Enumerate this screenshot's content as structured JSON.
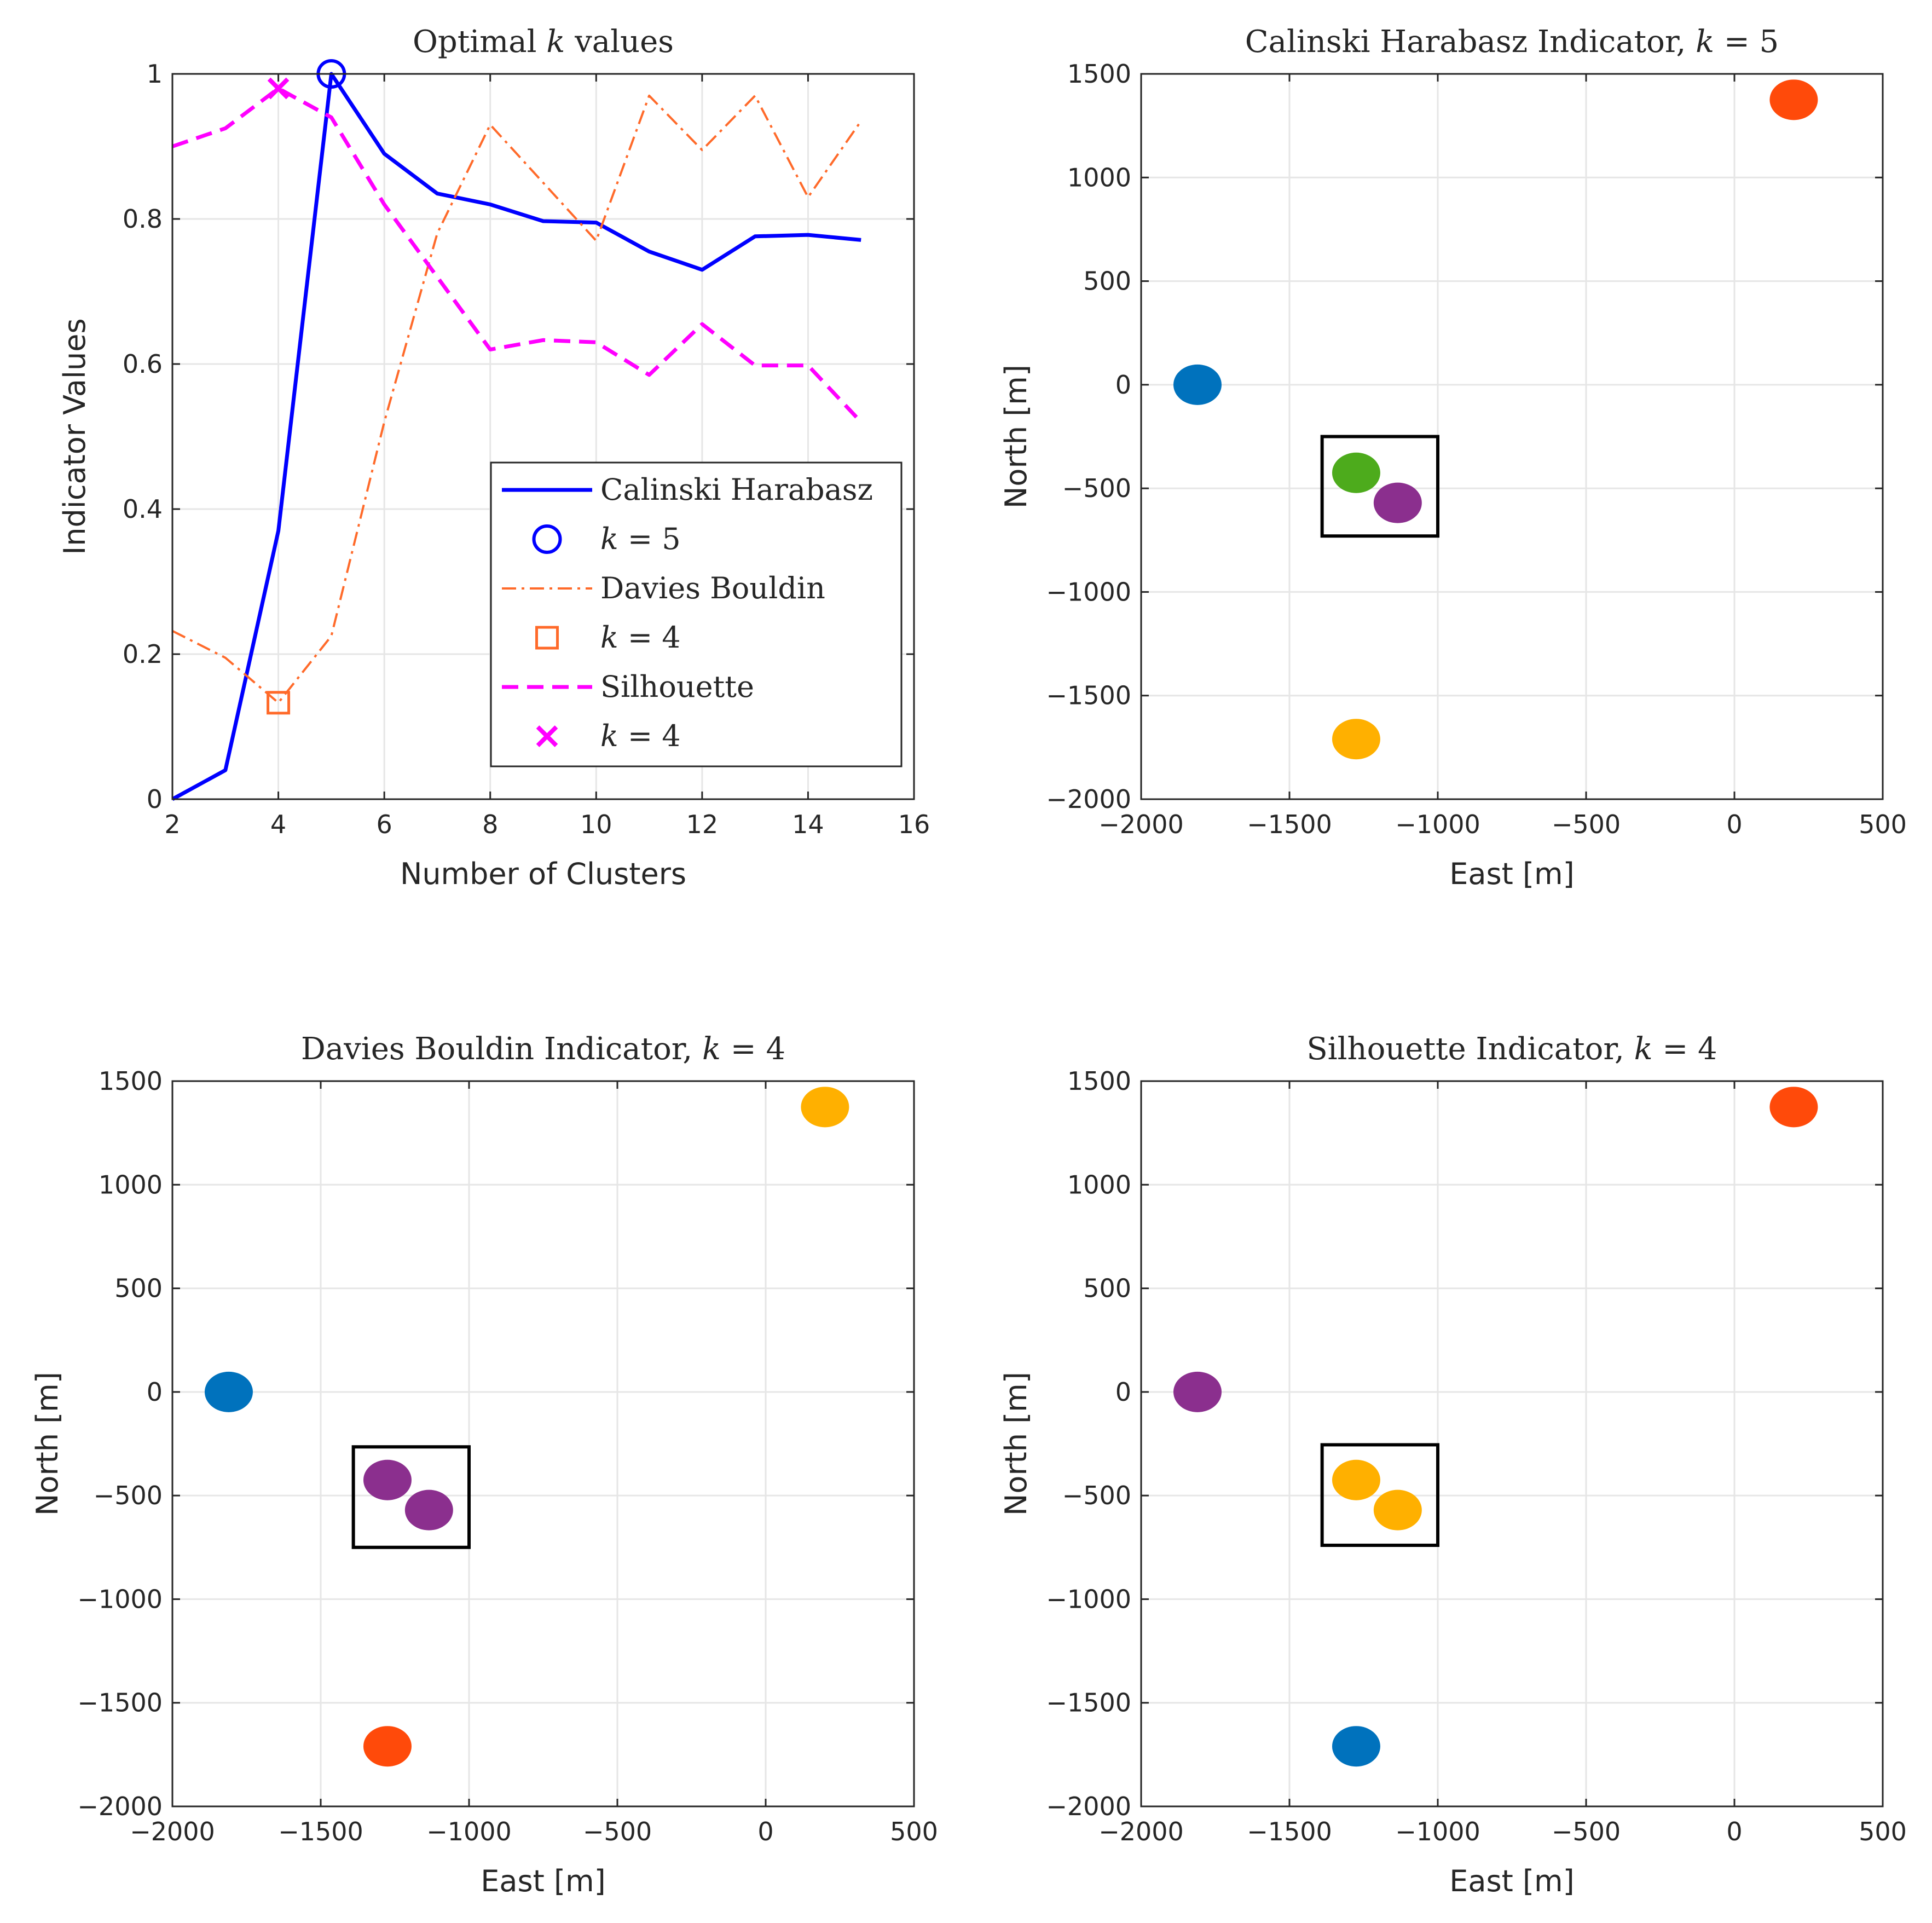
{
  "chart_data": [
    {
      "type": "line",
      "title": "Optimal k values",
      "title_parts": [
        "Optimal ",
        "k",
        " values"
      ],
      "xlabel": "Number of Clusters",
      "ylabel": "Indicator Values",
      "xlim": [
        2,
        16
      ],
      "ylim": [
        0,
        1
      ],
      "xticks": [
        "2",
        "4",
        "6",
        "8",
        "10",
        "12",
        "14",
        "16"
      ],
      "yticks": [
        "0",
        "0.2",
        "0.4",
        "0.6",
        "0.8",
        "1"
      ],
      "grid": true,
      "legend_position": "lower-right",
      "x": [
        2,
        3,
        4,
        5,
        6,
        7,
        8,
        9,
        10,
        11,
        12,
        13,
        14,
        15
      ],
      "series": [
        {
          "name": "Calinski Harabasz",
          "color": "#0000ff",
          "style": "solid",
          "values": [
            0.0,
            0.04,
            0.37,
            1.0,
            0.89,
            0.835,
            0.82,
            0.797,
            0.795,
            0.755,
            0.73,
            0.776,
            0.778,
            0.771
          ]
        },
        {
          "name": "Davies Bouldin",
          "color": "#ff6a2a",
          "style": "dashdot",
          "values": [
            0.232,
            0.195,
            0.133,
            0.225,
            0.52,
            0.78,
            0.93,
            0.85,
            0.77,
            0.97,
            0.895,
            0.97,
            0.83,
            0.935
          ]
        },
        {
          "name": "Silhouette",
          "color": "#ff00ff",
          "style": "dashed",
          "values": [
            0.9,
            0.925,
            0.98,
            0.94,
            0.82,
            0.72,
            0.62,
            0.633,
            0.63,
            0.585,
            0.655,
            0.598,
            0.598,
            0.52
          ]
        }
      ],
      "markers": [
        {
          "label": "k = 5",
          "k": "k",
          "eq": " = 5",
          "series": "Calinski Harabasz",
          "x": 5,
          "y": 1.0,
          "shape": "circle",
          "color": "#0000ff"
        },
        {
          "label": "k = 4",
          "k": "k",
          "eq": " = 4",
          "series": "Davies Bouldin",
          "x": 4,
          "y": 0.133,
          "shape": "square",
          "color": "#ff6a2a"
        },
        {
          "label": "k = 4",
          "k": "k",
          "eq": " = 4",
          "series": "Silhouette",
          "x": 4,
          "y": 0.98,
          "shape": "x",
          "color": "#ff00ff"
        }
      ]
    },
    {
      "type": "scatter",
      "title": "Calinski Harabasz Indicator, k = 5",
      "title_parts": [
        "Calinski Harabasz Indicator, ",
        "k",
        " = 5"
      ],
      "xlabel": "East [m]",
      "ylabel": "North [m]",
      "xlim": [
        -2000,
        500
      ],
      "ylim": [
        -2000,
        1500
      ],
      "xticks": [
        "−2000",
        "−1500",
        "−1000",
        "−500",
        "0",
        "500"
      ],
      "yticks": [
        "−2000",
        "−1500",
        "−1000",
        "−500",
        "0",
        "500",
        "1000",
        "1500"
      ],
      "grid": true,
      "points": [
        {
          "x": -1810,
          "y": 0,
          "color": "#0072bd"
        },
        {
          "x": -1275,
          "y": -425,
          "color": "#4dab1c"
        },
        {
          "x": -1135,
          "y": -570,
          "color": "#8b2f8e"
        },
        {
          "x": -1275,
          "y": -1710,
          "color": "#ffb000"
        },
        {
          "x": 200,
          "y": 1375,
          "color": "#ff4a0a"
        }
      ],
      "highlight_box": {
        "x": [
          -1390,
          -1000
        ],
        "y": [
          -730,
          -250
        ]
      }
    },
    {
      "type": "scatter",
      "title": "Davies Bouldin Indicator, k = 4",
      "title_parts": [
        "Davies Bouldin Indicator, ",
        "k",
        " = 4"
      ],
      "xlabel": "East [m]",
      "ylabel": "North [m]",
      "xlim": [
        -2000,
        500
      ],
      "ylim": [
        -2000,
        1500
      ],
      "xticks": [
        "−2000",
        "−1500",
        "−1000",
        "−500",
        "0",
        "500"
      ],
      "yticks": [
        "−2000",
        "−1500",
        "−1000",
        "−500",
        "0",
        "500",
        "1000",
        "1500"
      ],
      "grid": true,
      "points": [
        {
          "x": -1810,
          "y": 0,
          "color": "#0072bd"
        },
        {
          "x": -1275,
          "y": -425,
          "color": "#8b2f8e"
        },
        {
          "x": -1135,
          "y": -570,
          "color": "#8b2f8e"
        },
        {
          "x": -1275,
          "y": -1710,
          "color": "#ff4a0a"
        },
        {
          "x": 200,
          "y": 1375,
          "color": "#ffb000"
        }
      ],
      "highlight_box": {
        "x": [
          -1390,
          -1000
        ],
        "y": [
          -750,
          -265
        ]
      }
    },
    {
      "type": "scatter",
      "title": "Silhouette Indicator, k = 4",
      "title_parts": [
        "Silhouette Indicator, ",
        "k",
        " = 4"
      ],
      "xlabel": "East [m]",
      "ylabel": "North [m]",
      "xlim": [
        -2000,
        500
      ],
      "ylim": [
        -2000,
        1500
      ],
      "xticks": [
        "−2000",
        "−1500",
        "−1000",
        "−500",
        "0",
        "500"
      ],
      "yticks": [
        "−2000",
        "−1500",
        "−1000",
        "−500",
        "0",
        "500",
        "1000",
        "1500"
      ],
      "grid": true,
      "points": [
        {
          "x": -1810,
          "y": 0,
          "color": "#8b2f8e"
        },
        {
          "x": -1275,
          "y": -425,
          "color": "#ffb000"
        },
        {
          "x": -1135,
          "y": -570,
          "color": "#ffb000"
        },
        {
          "x": -1275,
          "y": -1710,
          "color": "#0072bd"
        },
        {
          "x": 200,
          "y": 1375,
          "color": "#ff4a0a"
        }
      ],
      "highlight_box": {
        "x": [
          -1390,
          -1000
        ],
        "y": [
          -740,
          -255
        ]
      }
    }
  ]
}
